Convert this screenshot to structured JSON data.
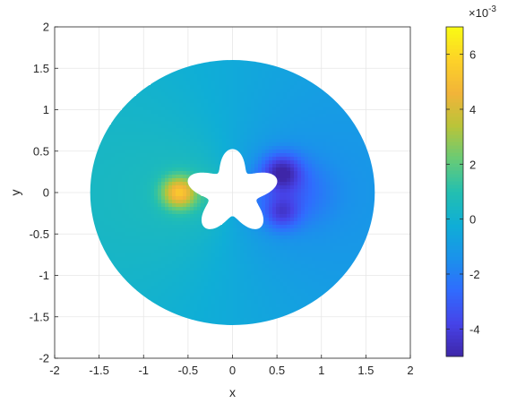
{
  "chart_data": {
    "type": "heatmap",
    "title": "",
    "xlabel": "x",
    "ylabel": "y",
    "xlim": [
      -2,
      2
    ],
    "ylim": [
      -2,
      2
    ],
    "xticks": [
      -2,
      -1.5,
      -1,
      -0.5,
      0,
      0.5,
      1,
      1.5,
      2
    ],
    "yticks": [
      -2,
      -1.5,
      -1,
      -0.5,
      0,
      0.5,
      1,
      1.5,
      2
    ],
    "xtick_labels": [
      "-2",
      "-1.5",
      "-1",
      "-0.5",
      "0",
      "0.5",
      "1",
      "1.5",
      "2"
    ],
    "ytick_labels": [
      "-2",
      "-1.5",
      "-1",
      "-0.5",
      "0",
      "0.5",
      "1",
      "1.5",
      "2"
    ],
    "grid": true,
    "domain": {
      "outer_radius": 1.6,
      "inner_shape": "five-lobed star",
      "inner_radius_mean": 0.4,
      "inner_radius_amplitude": 0.12,
      "inner_lobes": 5
    },
    "field": {
      "min": -0.005,
      "max": 0.007,
      "hot_spot": {
        "x": -0.6,
        "y": 0.0,
        "value": 0.0055
      },
      "cold_spot": {
        "x": 0.55,
        "y": 0.25,
        "value": -0.0048
      },
      "far_left_value": 0.0008,
      "far_right_value": -0.0016
    },
    "colorbar": {
      "colormap": "parula",
      "range": [
        -5,
        7
      ],
      "ticks": [
        -4,
        -2,
        0,
        2,
        4,
        6
      ],
      "tick_labels": [
        "-4",
        "-2",
        "0",
        "2",
        "4",
        "6"
      ],
      "multiplier": "×10",
      "exponent": "-3"
    }
  }
}
